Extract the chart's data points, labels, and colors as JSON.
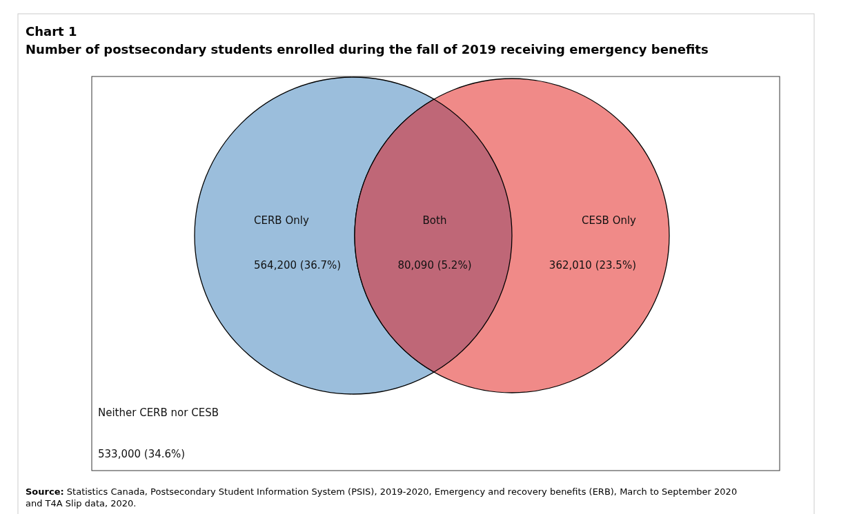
{
  "chart_data": {
    "type": "other",
    "title": "Chart 1",
    "subtitle": "Number of postsecondary students enrolled during the fall of 2019 receiving emergency benefits",
    "categories": [
      "CERB Only",
      "Both",
      "CESB Only",
      "Neither CERB nor CESB"
    ],
    "values": [
      564200,
      80090,
      362010,
      533000
    ],
    "value_labels": [
      "564,200 (36.7%)",
      "80,090 (5.2%)",
      "362,010 (23.5%)",
      "533,000 (34.6%)"
    ],
    "colors": [
      "#9bbedc",
      "#bf6777",
      "#f08a88",
      "#ffffff"
    ],
    "annotations": [
      "Source: Statistics Canada, Postsecondary Student Information System (PSIS), 2019-2020, Emergency and recovery benefits (ERB), March to September 2020 and T4A Slip data, 2020."
    ]
  }
}
